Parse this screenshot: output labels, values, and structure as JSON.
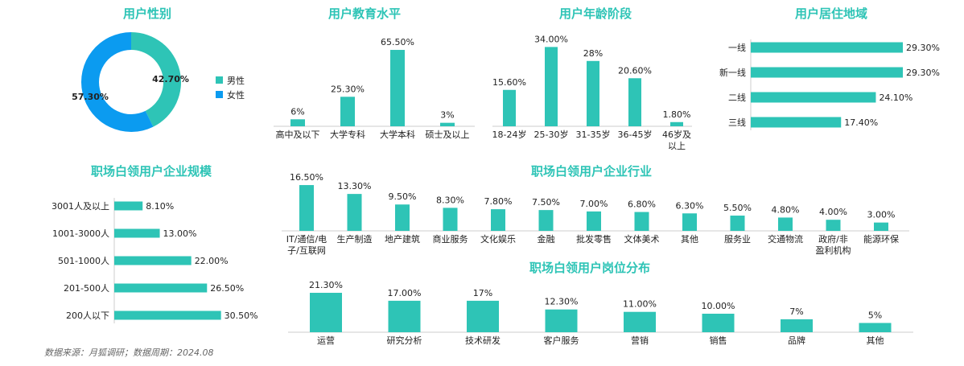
{
  "colors": {
    "teal": "#2ec4b6",
    "blue": "#0b9bf0",
    "title": "#2ec4b6",
    "axis": "#cccccc"
  },
  "source": "数据来源：月狐调研；数据周期：2024.08",
  "chart_data": [
    {
      "id": "gender",
      "type": "pie",
      "title": "用户性别",
      "labels": [
        "男性",
        "女性"
      ],
      "values": [
        42.7,
        57.3
      ],
      "value_labels": [
        "42.70%",
        "57.30%"
      ],
      "legend": "right"
    },
    {
      "id": "education",
      "type": "bar",
      "title": "用户教育水平",
      "categories": [
        "高中及以下",
        "大学专科",
        "大学本科",
        "硕士及以上"
      ],
      "values": [
        6,
        25.3,
        65.5,
        3
      ],
      "value_labels": [
        "6%",
        "25.30%",
        "65.50%",
        "3%"
      ]
    },
    {
      "id": "age",
      "type": "bar",
      "title": "用户年龄阶段",
      "categories": [
        "18-24岁",
        "25-30岁",
        "31-35岁",
        "36-45岁",
        "46岁及以上"
      ],
      "values": [
        15.6,
        34,
        28,
        20.6,
        1.8
      ],
      "value_labels": [
        "15.60%",
        "34.00%",
        "28%",
        "20.60%",
        "1.80%"
      ]
    },
    {
      "id": "region",
      "type": "bar",
      "orientation": "horizontal",
      "title": "用户居住地域",
      "categories": [
        "一线",
        "新一线",
        "二线",
        "三线"
      ],
      "values": [
        29.3,
        29.3,
        24.1,
        17.4
      ],
      "value_labels": [
        "29.30%",
        "29.30%",
        "24.10%",
        "17.40%"
      ]
    },
    {
      "id": "company_size",
      "type": "bar",
      "orientation": "horizontal",
      "title": "职场白领用户企业规模",
      "categories": [
        "3001人及以上",
        "1001-3000人",
        "501-1000人",
        "201-500人",
        "200人以下"
      ],
      "values": [
        8.1,
        13,
        22,
        26.5,
        30.5
      ],
      "value_labels": [
        "8.10%",
        "13.00%",
        "22.00%",
        "26.50%",
        "30.50%"
      ]
    },
    {
      "id": "industry",
      "type": "bar",
      "title": "职场白领用户企业行业",
      "categories": [
        "IT/通信/电子/互联网",
        "生产制造",
        "地产建筑",
        "商业服务",
        "文化娱乐",
        "金融",
        "批发零售",
        "文体美术",
        "其他",
        "服务业",
        "交通物流",
        "政府/非盈利机构",
        "能源环保"
      ],
      "values": [
        16.5,
        13.3,
        9.5,
        8.3,
        7.8,
        7.5,
        7.0,
        6.8,
        6.3,
        5.5,
        4.8,
        4.0,
        3.0
      ],
      "value_labels": [
        "16.50%",
        "13.30%",
        "9.50%",
        "8.30%",
        "7.80%",
        "7.50%",
        "7.00%",
        "6.80%",
        "6.30%",
        "5.50%",
        "4.80%",
        "4.00%",
        "3.00%"
      ]
    },
    {
      "id": "position",
      "type": "bar",
      "title": "职场白领用户岗位分布",
      "categories": [
        "运营",
        "研究分析",
        "技术研发",
        "客户服务",
        "营销",
        "销售",
        "品牌",
        "其他"
      ],
      "values": [
        21.3,
        17.0,
        17,
        12.3,
        11.0,
        10.0,
        7,
        5
      ],
      "value_labels": [
        "21.30%",
        "17.00%",
        "17%",
        "12.30%",
        "11.00%",
        "10.00%",
        "7%",
        "5%"
      ]
    }
  ]
}
